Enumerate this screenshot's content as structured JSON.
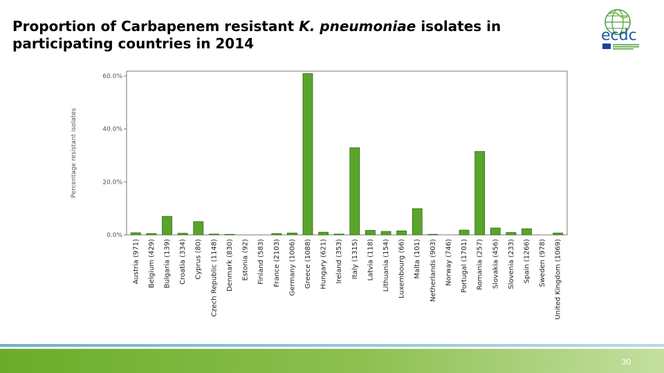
{
  "slide": {
    "title_part1": "Proportion of Carbapenem resistant ",
    "title_italic": "K. pneumoniae",
    "title_part2": " isolates in participating countries in 2014",
    "page_number": "30"
  },
  "logo": {
    "text": "ecdc",
    "colors": {
      "globe": "#4a9a3a",
      "text": "#1f5aa8",
      "flag": "#1f3f99"
    }
  },
  "colors": {
    "bar": "#5aa42a",
    "bar_stroke": "#2e6b12",
    "axis": "#777777",
    "footer_start": "#6aad2a",
    "footer_end": "#c4dfa0",
    "footer_line": "#6fb2c9"
  },
  "chart_data": {
    "type": "bar",
    "ylabel": "Percentage resistant isolates",
    "ylim": [
      0,
      60
    ],
    "yticks": [
      0,
      20,
      40,
      60
    ],
    "yticklabels": [
      "0.0%",
      "20.0%",
      "40.0%",
      "60.0%"
    ],
    "grid": false,
    "categories": [
      "Austria (971)",
      "Belgium (429)",
      "Bulgaria (139)",
      "Croatia (334)",
      "Cyprus (80)",
      "Czech Republic (1148)",
      "Denmark (830)",
      "Estonia (92)",
      "Finland (583)",
      "France (2103)",
      "Germany (1006)",
      "Greece (1088)",
      "Hungary (621)",
      "Ireland (353)",
      "Italy (1315)",
      "Latvia (118)",
      "Lithuania (154)",
      "Luxembourg (66)",
      "Malta (101)",
      "Netherlands (903)",
      "Norway (746)",
      "Portugal (1701)",
      "Romania (257)",
      "Slovakia (456)",
      "Slovenia (233)",
      "Spain (1266)",
      "Sweden (978)",
      "United Kingdom (1069)"
    ],
    "values": [
      0.8,
      0.5,
      7.0,
      0.6,
      5.0,
      0.3,
      0.2,
      0.0,
      0.0,
      0.5,
      0.7,
      62.3,
      1.0,
      0.3,
      32.9,
      1.7,
      1.3,
      1.5,
      9.9,
      0.2,
      0.0,
      1.8,
      31.5,
      2.6,
      0.9,
      2.3,
      0.0,
      0.7
    ]
  }
}
